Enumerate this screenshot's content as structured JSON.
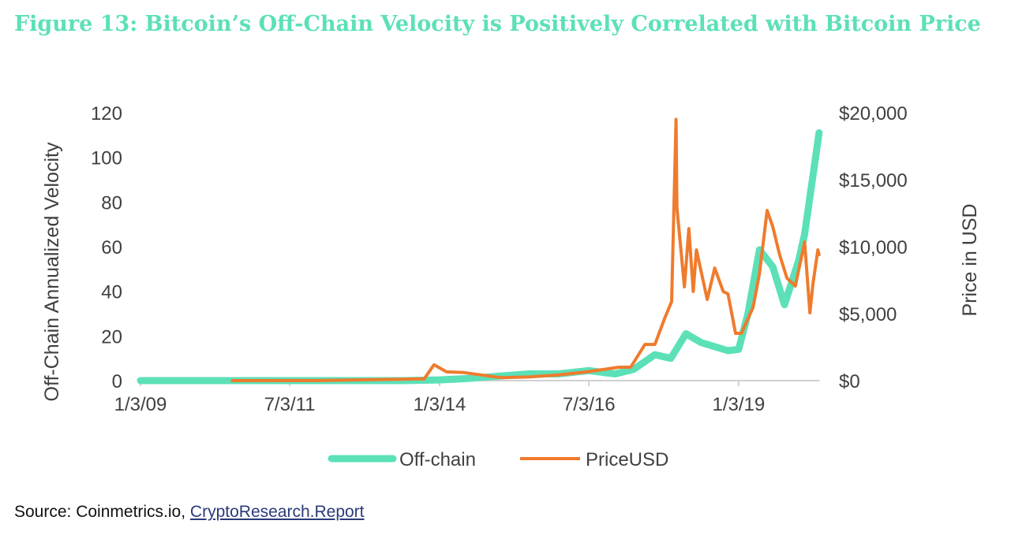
{
  "title": "Figure 13: Bitcoin’s Off-Chain Velocity is Positively Correlated with Bitcoin Price",
  "source": {
    "prefix": "Source: Coinmetrics.io, ",
    "link": "CryptoResearch.Report"
  },
  "chart_data": {
    "type": "line",
    "title": "Figure 13: Bitcoin’s Off-Chain Velocity is Positively Correlated with Bitcoin Price",
    "xlabel": "",
    "ylabel": "Off-Chain Annualized Velocity",
    "y2label": "Price in USD",
    "xlim": [
      "2009-01-03",
      "2020-05-10"
    ],
    "ylim": [
      0,
      120
    ],
    "y2lim": [
      0,
      20000
    ],
    "x_ticks": [
      {
        "date": "2009-01-03",
        "label": "1/3/09"
      },
      {
        "date": "2011-07-03",
        "label": "7/3/11"
      },
      {
        "date": "2014-01-03",
        "label": "1/3/14"
      },
      {
        "date": "2016-07-03",
        "label": "7/3/16"
      },
      {
        "date": "2019-01-03",
        "label": "1/3/19"
      }
    ],
    "y_ticks": [
      "0",
      "20",
      "40",
      "60",
      "80",
      "100",
      "120"
    ],
    "y2_ticks": [
      "$0",
      "$5,000",
      "$10,000",
      "$15,000",
      "$20,000"
    ],
    "grid": false,
    "legend": "bottom",
    "series": [
      {
        "name": "Off-chain",
        "axis": "left",
        "color": "#5ce0b8",
        "x": [
          "2009-01-03",
          "2013-06-01",
          "2014-01-01",
          "2014-07-01",
          "2015-01-01",
          "2015-07-01",
          "2016-01-01",
          "2016-07-01",
          "2016-12-10",
          "2017-04-01",
          "2017-08-10",
          "2017-11-15",
          "2018-02-15",
          "2018-05-20",
          "2018-10-30",
          "2019-01-03",
          "2019-03-01",
          "2019-05-10",
          "2019-07-30",
          "2019-10-10",
          "2020-01-05",
          "2020-02-10",
          "2020-05-08"
        ],
        "y": [
          0,
          0,
          0.3,
          1,
          2,
          3,
          3,
          4.5,
          3,
          5,
          11.6,
          10,
          21,
          17,
          13.4,
          14,
          30,
          58.6,
          51,
          34,
          54,
          65.6,
          111
        ]
      },
      {
        "name": "PriceUSD",
        "axis": "right",
        "color": "#ef7b2d",
        "x": [
          "2010-07-18",
          "2012-01-01",
          "2013-03-01",
          "2013-10-01",
          "2013-11-30",
          "2014-02-15",
          "2014-06-01",
          "2015-01-15",
          "2015-07-01",
          "2016-01-01",
          "2016-07-01",
          "2017-01-01",
          "2017-03-15",
          "2017-06-10",
          "2017-08-10",
          "2017-10-10",
          "2017-11-20",
          "2017-12-17",
          "2017-12-22",
          "2018-02-06",
          "2018-03-05",
          "2018-04-01",
          "2018-04-20",
          "2018-06-25",
          "2018-08-10",
          "2018-10-01",
          "2018-10-30",
          "2018-12-15",
          "2019-01-20",
          "2019-04-01",
          "2019-05-10",
          "2019-06-26",
          "2019-07-30",
          "2019-09-10",
          "2019-10-25",
          "2019-12-15",
          "2020-02-10",
          "2020-03-13",
          "2020-04-01",
          "2020-05-01",
          "2020-05-08"
        ],
        "y": [
          0,
          5,
          90,
          130,
          1180,
          650,
          600,
          220,
          270,
          430,
          670,
          1000,
          1000,
          2700,
          2700,
          4700,
          5900,
          19500,
          12900,
          7000,
          11350,
          6650,
          9760,
          6060,
          8400,
          6650,
          6470,
          3530,
          3530,
          5470,
          8000,
          12700,
          11500,
          9400,
          7650,
          7060,
          10350,
          5060,
          7240,
          9760,
          9400
        ]
      }
    ]
  }
}
